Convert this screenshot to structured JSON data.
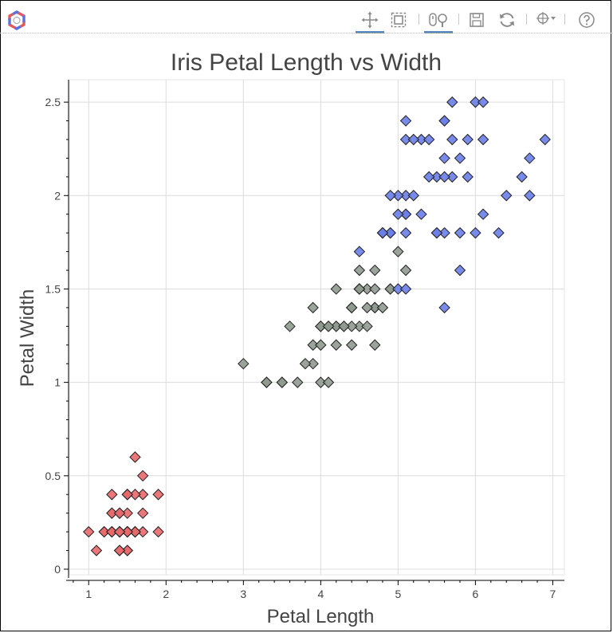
{
  "toolbar": {
    "logo_icon": "bokeh-logo-icon",
    "tools": [
      {
        "name": "pan-tool",
        "icon": "pan-icon",
        "active": true
      },
      {
        "name": "box-zoom-tool",
        "icon": "box-zoom-icon",
        "active": false
      },
      {
        "name": "wheel-zoom-tool",
        "icon": "wheel-zoom-icon",
        "active": true
      },
      {
        "name": "save-tool",
        "icon": "save-icon",
        "active": false
      },
      {
        "name": "reset-tool",
        "icon": "reset-icon",
        "active": false
      },
      {
        "name": "inspect-tool",
        "icon": "crosshair-icon",
        "active": false
      },
      {
        "name": "help-tool",
        "icon": "help-icon",
        "active": false
      }
    ]
  },
  "chart_data": {
    "type": "scatter",
    "title": "Iris Petal Length vs Width",
    "xlabel": "Petal Length",
    "ylabel": "Petal Width",
    "xlim": [
      0.75,
      7.15
    ],
    "ylim": [
      -0.03,
      2.62
    ],
    "xticks": [
      1,
      2,
      3,
      4,
      5,
      6,
      7
    ],
    "yticks": [
      0,
      0.5,
      1,
      1.5,
      2,
      2.5
    ],
    "ytick_labels": [
      "0",
      "0.5",
      "1",
      "1.5",
      "2",
      "2.5"
    ],
    "grid": true,
    "legend": "none",
    "marker": "diamond",
    "series": [
      {
        "color": "#e8696b",
        "points": [
          [
            1.4,
            0.2
          ],
          [
            1.4,
            0.2
          ],
          [
            1.3,
            0.2
          ],
          [
            1.5,
            0.2
          ],
          [
            1.4,
            0.2
          ],
          [
            1.7,
            0.4
          ],
          [
            1.4,
            0.3
          ],
          [
            1.5,
            0.2
          ],
          [
            1.4,
            0.2
          ],
          [
            1.5,
            0.1
          ],
          [
            1.5,
            0.2
          ],
          [
            1.6,
            0.2
          ],
          [
            1.4,
            0.1
          ],
          [
            1.1,
            0.1
          ],
          [
            1.2,
            0.2
          ],
          [
            1.5,
            0.4
          ],
          [
            1.3,
            0.4
          ],
          [
            1.4,
            0.3
          ],
          [
            1.7,
            0.3
          ],
          [
            1.5,
            0.3
          ],
          [
            1.7,
            0.2
          ],
          [
            1.5,
            0.4
          ],
          [
            1.0,
            0.2
          ],
          [
            1.7,
            0.5
          ],
          [
            1.9,
            0.2
          ],
          [
            1.6,
            0.2
          ],
          [
            1.6,
            0.4
          ],
          [
            1.5,
            0.2
          ],
          [
            1.4,
            0.2
          ],
          [
            1.6,
            0.2
          ],
          [
            1.6,
            0.2
          ],
          [
            1.5,
            0.4
          ],
          [
            1.5,
            0.1
          ],
          [
            1.4,
            0.2
          ],
          [
            1.5,
            0.2
          ],
          [
            1.2,
            0.2
          ],
          [
            1.3,
            0.2
          ],
          [
            1.4,
            0.1
          ],
          [
            1.3,
            0.2
          ],
          [
            1.5,
            0.2
          ],
          [
            1.3,
            0.3
          ],
          [
            1.3,
            0.3
          ],
          [
            1.3,
            0.2
          ],
          [
            1.6,
            0.6
          ],
          [
            1.9,
            0.4
          ],
          [
            1.4,
            0.3
          ],
          [
            1.6,
            0.2
          ],
          [
            1.4,
            0.2
          ],
          [
            1.5,
            0.2
          ],
          [
            1.4,
            0.2
          ]
        ]
      },
      {
        "color": "#8f9a8f",
        "points": [
          [
            4.7,
            1.4
          ],
          [
            4.5,
            1.5
          ],
          [
            4.9,
            1.5
          ],
          [
            4.0,
            1.3
          ],
          [
            4.6,
            1.5
          ],
          [
            4.5,
            1.3
          ],
          [
            4.7,
            1.6
          ],
          [
            3.3,
            1.0
          ],
          [
            4.6,
            1.3
          ],
          [
            3.9,
            1.4
          ],
          [
            3.5,
            1.0
          ],
          [
            4.2,
            1.5
          ],
          [
            4.0,
            1.0
          ],
          [
            4.7,
            1.4
          ],
          [
            3.6,
            1.3
          ],
          [
            4.4,
            1.4
          ],
          [
            4.5,
            1.5
          ],
          [
            4.1,
            1.0
          ],
          [
            4.5,
            1.5
          ],
          [
            3.9,
            1.1
          ],
          [
            4.8,
            1.8
          ],
          [
            4.0,
            1.3
          ],
          [
            4.9,
            1.5
          ],
          [
            4.7,
            1.2
          ],
          [
            4.3,
            1.3
          ],
          [
            4.4,
            1.4
          ],
          [
            4.8,
            1.4
          ],
          [
            5.0,
            1.7
          ],
          [
            4.5,
            1.5
          ],
          [
            3.5,
            1.0
          ],
          [
            3.8,
            1.1
          ],
          [
            3.7,
            1.0
          ],
          [
            3.9,
            1.2
          ],
          [
            5.1,
            1.6
          ],
          [
            4.5,
            1.5
          ],
          [
            4.5,
            1.6
          ],
          [
            4.7,
            1.5
          ],
          [
            4.4,
            1.3
          ],
          [
            4.1,
            1.3
          ],
          [
            4.0,
            1.3
          ],
          [
            4.4,
            1.2
          ],
          [
            4.6,
            1.4
          ],
          [
            4.0,
            1.2
          ],
          [
            3.3,
            1.0
          ],
          [
            4.2,
            1.3
          ],
          [
            4.2,
            1.2
          ],
          [
            4.2,
            1.3
          ],
          [
            4.3,
            1.3
          ],
          [
            3.0,
            1.1
          ],
          [
            4.1,
            1.3
          ]
        ]
      },
      {
        "color": "#6a7ee8",
        "points": [
          [
            6.0,
            2.5
          ],
          [
            5.1,
            1.9
          ],
          [
            5.9,
            2.1
          ],
          [
            5.6,
            1.8
          ],
          [
            5.8,
            2.2
          ],
          [
            6.6,
            2.1
          ],
          [
            4.5,
            1.7
          ],
          [
            6.3,
            1.8
          ],
          [
            5.8,
            1.8
          ],
          [
            6.1,
            2.5
          ],
          [
            5.1,
            2.0
          ],
          [
            5.3,
            1.9
          ],
          [
            5.5,
            2.1
          ],
          [
            5.0,
            2.0
          ],
          [
            5.1,
            2.4
          ],
          [
            5.3,
            2.3
          ],
          [
            5.5,
            1.8
          ],
          [
            6.7,
            2.2
          ],
          [
            6.9,
            2.3
          ],
          [
            5.0,
            1.5
          ],
          [
            5.7,
            2.3
          ],
          [
            4.9,
            2.0
          ],
          [
            6.7,
            2.0
          ],
          [
            4.9,
            1.8
          ],
          [
            5.7,
            2.1
          ],
          [
            6.0,
            1.8
          ],
          [
            4.8,
            1.8
          ],
          [
            4.9,
            1.8
          ],
          [
            5.6,
            2.1
          ],
          [
            5.8,
            1.6
          ],
          [
            6.1,
            1.9
          ],
          [
            6.4,
            2.0
          ],
          [
            5.6,
            2.2
          ],
          [
            5.1,
            1.5
          ],
          [
            5.6,
            1.4
          ],
          [
            6.1,
            2.3
          ],
          [
            5.6,
            2.4
          ],
          [
            5.5,
            1.8
          ],
          [
            4.8,
            1.8
          ],
          [
            5.4,
            2.1
          ],
          [
            5.6,
            2.4
          ],
          [
            5.1,
            2.3
          ],
          [
            5.1,
            1.9
          ],
          [
            5.9,
            2.3
          ],
          [
            5.7,
            2.5
          ],
          [
            5.2,
            2.3
          ],
          [
            5.0,
            1.9
          ],
          [
            5.2,
            2.0
          ],
          [
            5.4,
            2.3
          ],
          [
            5.1,
            1.8
          ]
        ]
      }
    ]
  }
}
